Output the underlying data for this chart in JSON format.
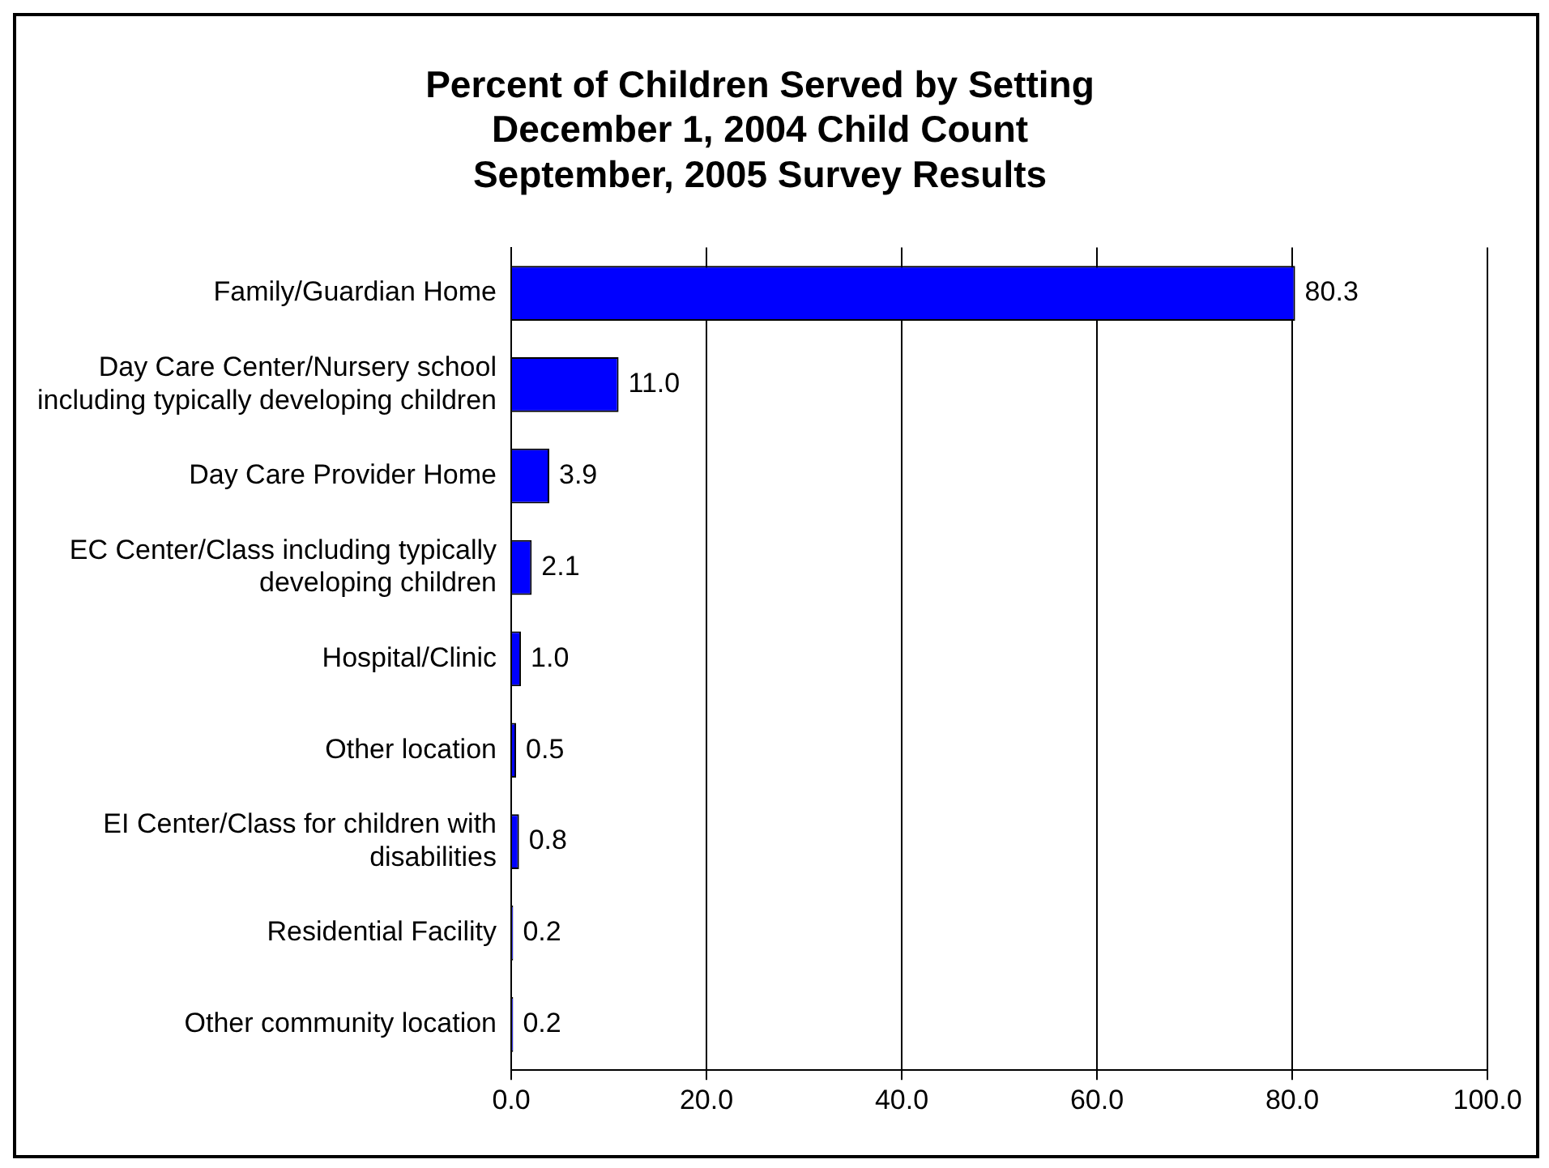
{
  "chart_data": {
    "type": "bar",
    "orientation": "horizontal",
    "title": "Percent of Children Served by Setting\nDecember 1, 2004 Child Count\nSeptember, 2005 Survey Results",
    "categories": [
      "Family/Guardian Home",
      "Day Care Center/Nursery school including typically developing children",
      "Day Care Provider Home",
      "EC Center/Class including typically developing children",
      "Hospital/Clinic",
      "Other location",
      "EI Center/Class for children with disabilities",
      "Residential Facility",
      "Other community location"
    ],
    "values": [
      80.3,
      11.0,
      3.9,
      2.1,
      1.0,
      0.5,
      0.8,
      0.2,
      0.2
    ],
    "value_labels": [
      "80.3",
      "11.0",
      "3.9",
      "2.1",
      "1.0",
      "0.5",
      "0.8",
      "0.2",
      "0.2"
    ],
    "color": "#0000ff",
    "xlim": [
      0,
      100
    ],
    "xticks": [
      {
        "value": 0,
        "label": "0.0"
      },
      {
        "value": 20,
        "label": "20.0"
      },
      {
        "value": 40,
        "label": "40.0"
      },
      {
        "value": 60,
        "label": "60.0"
      },
      {
        "value": 80,
        "label": "80.0"
      },
      {
        "value": 100,
        "label": "100.0"
      }
    ],
    "grid": "x",
    "legend": false
  }
}
